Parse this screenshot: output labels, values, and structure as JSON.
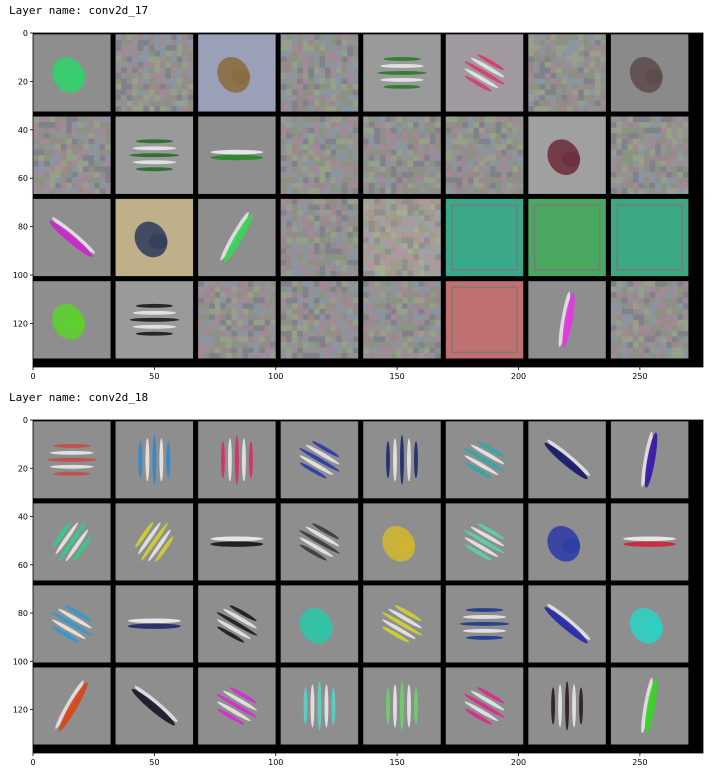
{
  "figures": [
    {
      "layer_label": "Layer name: conv2d_17",
      "x_ticks": [
        0,
        50,
        100,
        150,
        200,
        250
      ],
      "y_ticks": [
        0,
        20,
        40,
        60,
        80,
        100,
        120
      ],
      "x_range": [
        0,
        276
      ],
      "y_range": [
        0,
        138
      ],
      "grid": {
        "rows": 4,
        "cols": 8,
        "cell_size": 32,
        "gap": 2
      },
      "filters": [
        {
          "type": "blob",
          "color": "#2fd36a",
          "bg": "#8e8e8e"
        },
        {
          "type": "noise",
          "color": "#8a8a8a",
          "bg": "#8a8a8a"
        },
        {
          "type": "blob",
          "color": "#8a6a3a",
          "bg": "#9aa0b8"
        },
        {
          "type": "noise",
          "color": "#8a8a8a",
          "bg": "#8a8a8a"
        },
        {
          "type": "stripes-h",
          "color": "#2a7a2a",
          "bg": "#9a9a9a"
        },
        {
          "type": "stripes-diag",
          "color": "#d83a6a",
          "bg": "#a09aa0"
        },
        {
          "type": "noise",
          "color": "#8a8a8a",
          "bg": "#8a8a8a"
        },
        {
          "type": "blob",
          "color": "#5a4a4a",
          "bg": "#8a8a8a"
        },
        {
          "type": "noise",
          "color": "#8a8a8a",
          "bg": "#8a8a8a"
        },
        {
          "type": "stripes-h",
          "color": "#2a6a2a",
          "bg": "#9a9a9a"
        },
        {
          "type": "bar-h",
          "color": "#2a8a2a",
          "bg": "#8e8e8e"
        },
        {
          "type": "noise",
          "color": "#8a8a8a",
          "bg": "#8a8a8a"
        },
        {
          "type": "noise",
          "color": "#8a8a8a",
          "bg": "#8a8a8a"
        },
        {
          "type": "noise",
          "color": "#8a8a8a",
          "bg": "#8a8a8a"
        },
        {
          "type": "blob",
          "color": "#6a2a3a",
          "bg": "#a0a0a0"
        },
        {
          "type": "noise",
          "color": "#8a8a8a",
          "bg": "#8a8a8a"
        },
        {
          "type": "bar-diag",
          "color": "#c82ac8",
          "bg": "#8e8e8e"
        },
        {
          "type": "blob",
          "color": "#2a3a5a",
          "bg": "#c0b08a"
        },
        {
          "type": "bar-diag2",
          "color": "#3ad35a",
          "bg": "#8e8e8e"
        },
        {
          "type": "noise",
          "color": "#8a8a8a",
          "bg": "#8a8a8a"
        },
        {
          "type": "noise",
          "color": "#7a6a5a",
          "bg": "#b0a898"
        },
        {
          "type": "solid",
          "color": "#3aa88a",
          "bg": "#3aa88a"
        },
        {
          "type": "solid",
          "color": "#4aa860",
          "bg": "#4aa860"
        },
        {
          "type": "solid",
          "color": "#3aa880",
          "bg": "#3aa880"
        },
        {
          "type": "blob",
          "color": "#5ad32a",
          "bg": "#8e8e8e"
        },
        {
          "type": "stripes-h",
          "color": "#1a1a1a",
          "bg": "#9a9a9a"
        },
        {
          "type": "noise",
          "color": "#8a8a8a",
          "bg": "#8a8a8a"
        },
        {
          "type": "noise",
          "color": "#8a8a8a",
          "bg": "#8a8a8a"
        },
        {
          "type": "noise",
          "color": "#8a8a8a",
          "bg": "#8a8a8a"
        },
        {
          "type": "solid",
          "color": "#c07070",
          "bg": "#c07070"
        },
        {
          "type": "bar-vert",
          "color": "#e03ae0",
          "bg": "#8e8e8e"
        },
        {
          "type": "noise",
          "color": "#8a8a8a",
          "bg": "#8a8a8a"
        }
      ]
    },
    {
      "layer_label": "Layer name: conv2d_18",
      "x_ticks": [
        0,
        50,
        100,
        150,
        200,
        250
      ],
      "y_ticks": [
        0,
        20,
        40,
        60,
        80,
        100,
        120
      ],
      "x_range": [
        0,
        276
      ],
      "y_range": [
        0,
        138
      ],
      "grid": {
        "rows": 4,
        "cols": 8,
        "cell_size": 32,
        "gap": 2
      },
      "filters": [
        {
          "type": "stripes-h",
          "color": "#c84a4a",
          "bg": "#8e8e8e"
        },
        {
          "type": "stripes-v",
          "color": "#2a8ad3",
          "bg": "#8e8e8e"
        },
        {
          "type": "stripes-v",
          "color": "#d82a6a",
          "bg": "#8e8e8e"
        },
        {
          "type": "stripes-diag",
          "color": "#2a3aa8",
          "bg": "#8e8e8e"
        },
        {
          "type": "stripes-v",
          "color": "#1a2a6a",
          "bg": "#8e8e8e"
        },
        {
          "type": "stripes-diag",
          "color": "#2aa8a8",
          "bg": "#8e8e8e"
        },
        {
          "type": "bar-diag",
          "color": "#1a1a6a",
          "bg": "#8e8e8e"
        },
        {
          "type": "bar-vert",
          "color": "#3a1aa8",
          "bg": "#8e8e8e"
        },
        {
          "type": "stripes-diag2",
          "color": "#2ad38a",
          "bg": "#8e8e8e"
        },
        {
          "type": "stripes-diag2",
          "color": "#d3d32a",
          "bg": "#8e8e8e"
        },
        {
          "type": "bar-h",
          "color": "#1a1a1a",
          "bg": "#8e8e8e"
        },
        {
          "type": "stripes-diag",
          "color": "#3a3a3a",
          "bg": "#8e8e8e"
        },
        {
          "type": "blob",
          "color": "#d3b82a",
          "bg": "#8e8e8e"
        },
        {
          "type": "stripes-diag",
          "color": "#5ad3a8",
          "bg": "#8e8e8e"
        },
        {
          "type": "blob",
          "color": "#2a3aa8",
          "bg": "#8e8e8e"
        },
        {
          "type": "bar-h",
          "color": "#c82a3a",
          "bg": "#8e8e8e"
        },
        {
          "type": "stripes-diag",
          "color": "#2a9ad3",
          "bg": "#8e8e8e"
        },
        {
          "type": "bar-h",
          "color": "#2a2a6a",
          "bg": "#8e8e8e"
        },
        {
          "type": "stripes-diag",
          "color": "#1a1a1a",
          "bg": "#8e8e8e"
        },
        {
          "type": "blob",
          "color": "#2ac8a8",
          "bg": "#8e8e8e"
        },
        {
          "type": "stripes-diag",
          "color": "#d3d32a",
          "bg": "#8e8e8e"
        },
        {
          "type": "stripes-h",
          "color": "#1a3a8a",
          "bg": "#8e8e8e"
        },
        {
          "type": "bar-diag",
          "color": "#2a2aa8",
          "bg": "#8e8e8e"
        },
        {
          "type": "blob",
          "color": "#2ad3c8",
          "bg": "#8e8e8e"
        },
        {
          "type": "bar-diag2",
          "color": "#d34a1a",
          "bg": "#8e8e8e"
        },
        {
          "type": "bar-diag",
          "color": "#1a1a2a",
          "bg": "#8e8e8e"
        },
        {
          "type": "stripes-diag",
          "color": "#d82ad3",
          "bg": "#8e8e8e"
        },
        {
          "type": "stripes-v",
          "color": "#5ad3c8",
          "bg": "#8e8e8e"
        },
        {
          "type": "stripes-v",
          "color": "#6ad36a",
          "bg": "#8e8e8e"
        },
        {
          "type": "stripes-diag",
          "color": "#d82a8a",
          "bg": "#8e8e8e"
        },
        {
          "type": "stripes-v",
          "color": "#2a1a1a",
          "bg": "#8e8e8e"
        },
        {
          "type": "bar-vert",
          "color": "#3ad32a",
          "bg": "#8e8e8e"
        }
      ]
    }
  ]
}
